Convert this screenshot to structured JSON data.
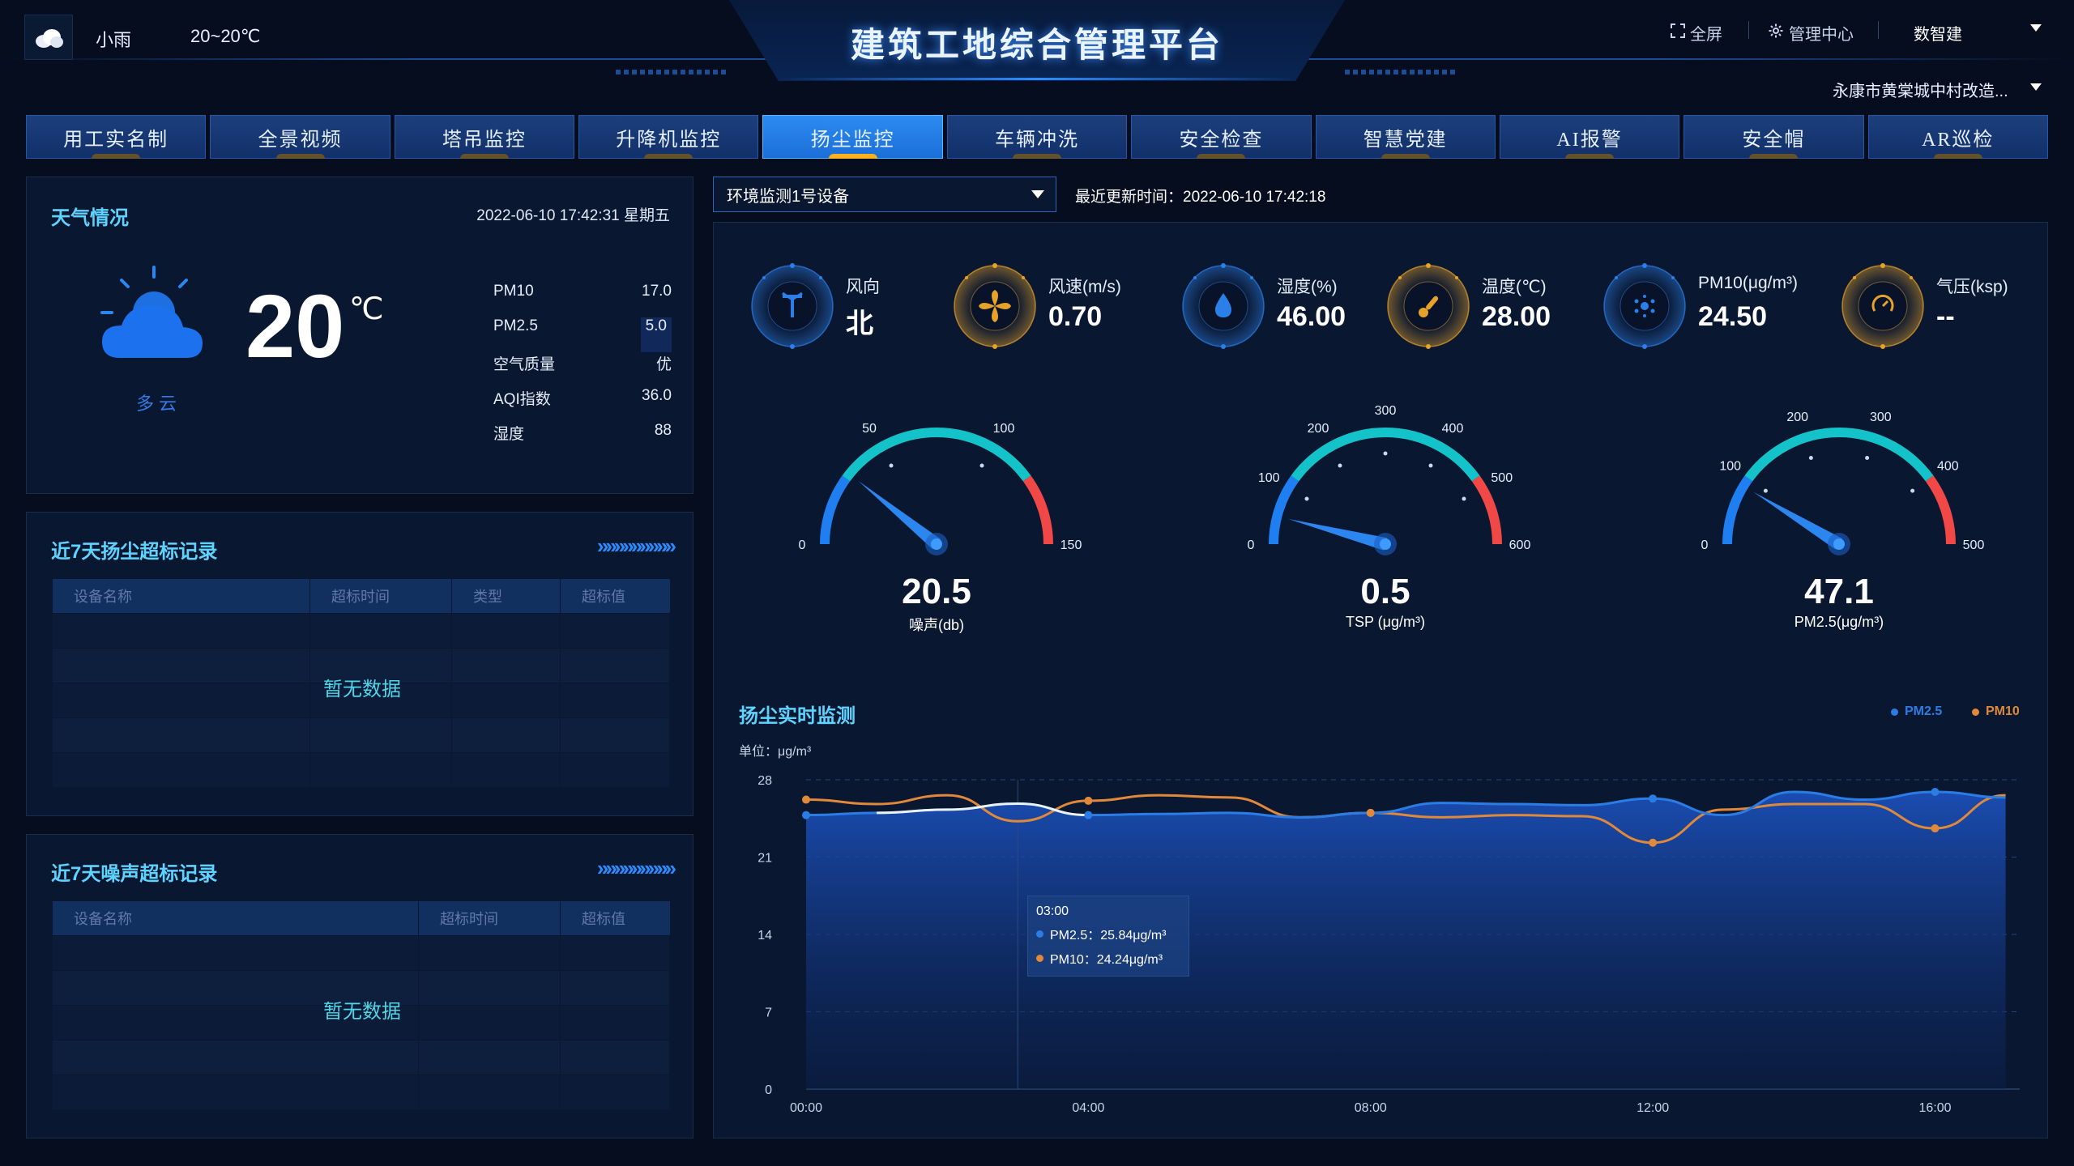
{
  "header": {
    "weather": "小雨",
    "temp_range": "20~20℃",
    "title": "建筑工地综合管理平台",
    "fullscreen": "全屏",
    "admin_center": "管理中心",
    "user": "数智建",
    "project": "永康市黄棠城中村改造..."
  },
  "tabs": [
    "用工实名制",
    "全景视频",
    "塔吊监控",
    "升降机监控",
    "扬尘监控",
    "车辆冲洗",
    "安全检查",
    "智慧党建",
    "AI报警",
    "安全帽",
    "AR巡检"
  ],
  "active_tab": 4,
  "weather_panel": {
    "title": "天气情况",
    "datetime": "2022-06-10 17:42:31 星期五",
    "temp": "20",
    "unit": "℃",
    "desc": "多云",
    "rows": [
      {
        "label": "PM10",
        "value": "17.0"
      },
      {
        "label": "PM2.5",
        "value": "5.0"
      },
      {
        "label": "空气质量",
        "value": "优"
      },
      {
        "label": "AQI指数",
        "value": "36.0"
      },
      {
        "label": "湿度",
        "value": "88"
      }
    ]
  },
  "dust_records": {
    "title": "近7天扬尘超标记录",
    "arrows": "»»»»»»»»»",
    "columns": [
      "设备名称",
      "超标时间",
      "类型",
      "超标值"
    ],
    "empty": "暂无数据"
  },
  "noise_records": {
    "title": "近7天噪声超标记录",
    "arrows": "»»»»»»»»»",
    "columns": [
      "设备名称",
      "超标时间",
      "超标值"
    ],
    "empty": "暂无数据"
  },
  "device": {
    "selected": "环境监测1号设备",
    "update_time": "最近更新时间：2022-06-10 17:42:18"
  },
  "metrics": [
    {
      "label": "风向",
      "value": "北",
      "icon": "wind-direction-icon",
      "color": "#2b7fe8"
    },
    {
      "label": "风速(m/s)",
      "value": "0.70",
      "icon": "fan-icon",
      "color": "#e6a32a"
    },
    {
      "label": "湿度(%)",
      "value": "46.00",
      "icon": "droplet-icon",
      "color": "#2b7fe8"
    },
    {
      "label": "温度(℃)",
      "value": "28.00",
      "icon": "thermometer-icon",
      "color": "#e6a32a"
    },
    {
      "label": "PM10(μg/m³)",
      "value": "24.50",
      "icon": "particles-icon",
      "color": "#2b7fe8"
    },
    {
      "label": "气压(ksp)",
      "value": "--",
      "icon": "pressure-gauge-icon",
      "color": "#e6a32a"
    }
  ],
  "gauges": [
    {
      "value": "20.5",
      "num": 20.5,
      "label": "噪声(db)",
      "max": 150,
      "ticks": [
        "0",
        "50",
        "100",
        "150"
      ]
    },
    {
      "value": "0.5",
      "num": 0.5,
      "label": "TSP (μg/m³)",
      "max": 600,
      "ticks": [
        "0",
        "100",
        "200",
        "300",
        "400",
        "500",
        "600"
      ]
    },
    {
      "value": "47.1",
      "num": 47.1,
      "label": "PM2.5(μg/m³)",
      "max": 500,
      "ticks": [
        "0",
        "100",
        "200",
        "300",
        "400",
        "500"
      ]
    }
  ],
  "chart": {
    "title": "扬尘实时监测",
    "unit": "单位：μg/m³",
    "tooltip": {
      "time": "03:00",
      "pm25": "PM2.5：25.84μg/m³",
      "pm10": "PM10：24.24μg/m³"
    }
  },
  "chart_data": {
    "type": "area",
    "title": "扬尘实时监测",
    "ylabel": "单位：μg/m³",
    "x": [
      "00:00",
      "01:00",
      "02:00",
      "03:00",
      "04:00",
      "05:00",
      "06:00",
      "07:00",
      "08:00",
      "09:00",
      "10:00",
      "11:00",
      "12:00",
      "13:00",
      "14:00",
      "15:00",
      "16:00",
      "17:00"
    ],
    "xticks": [
      "00:00",
      "04:00",
      "08:00",
      "12:00",
      "16:00"
    ],
    "yticks": [
      "0",
      "7",
      "14",
      "21",
      "28"
    ],
    "ylim": [
      0,
      28
    ],
    "series": [
      {
        "name": "PM2.5",
        "color": "#2b7de6",
        "values": [
          24.8,
          25.0,
          25.3,
          25.84,
          24.8,
          24.9,
          25.0,
          24.6,
          25.0,
          25.9,
          25.8,
          25.7,
          26.3,
          24.8,
          26.9,
          26.2,
          26.9,
          26.4
        ]
      },
      {
        "name": "PM10",
        "color": "#e0893a",
        "values": [
          26.2,
          25.8,
          26.6,
          24.24,
          26.1,
          26.6,
          26.4,
          24.6,
          25.0,
          24.6,
          24.8,
          24.7,
          22.3,
          25.3,
          25.8,
          25.8,
          23.6,
          26.6
        ]
      }
    ],
    "legend": "top-right",
    "grid": true
  }
}
